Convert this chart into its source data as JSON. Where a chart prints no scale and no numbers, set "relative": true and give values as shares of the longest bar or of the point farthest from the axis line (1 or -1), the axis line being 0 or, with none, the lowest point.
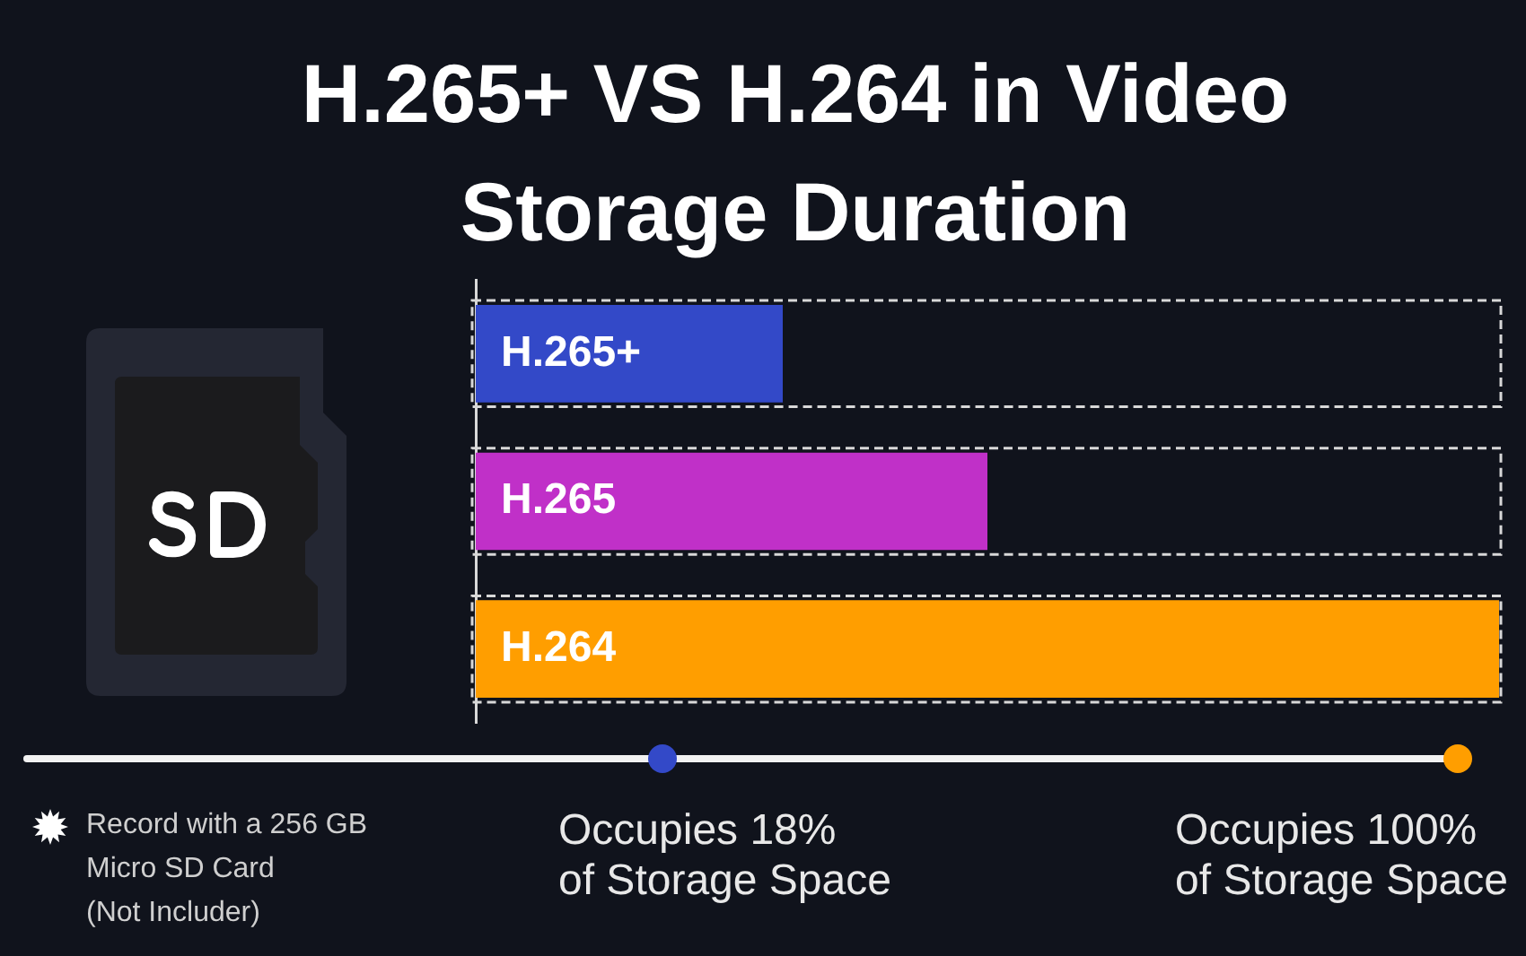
{
  "chart_data": {
    "type": "bar",
    "orientation": "horizontal",
    "relative": true,
    "title": "H.265+ VS H.264 in Video Storage Duration",
    "categories": [
      "H.265+",
      "H.265",
      "H.264"
    ],
    "values": [
      0.3,
      0.5,
      1
    ],
    "colors": [
      "#3349c8",
      "#c030c8",
      "#ff9e00"
    ],
    "annotations": [
      "Record with a 256 GB\nMicro SD Card\n(Not Includer)",
      "Occupies 18%\nof Storage Space",
      "Occupies 100%\nof Storage Space"
    ]
  }
}
